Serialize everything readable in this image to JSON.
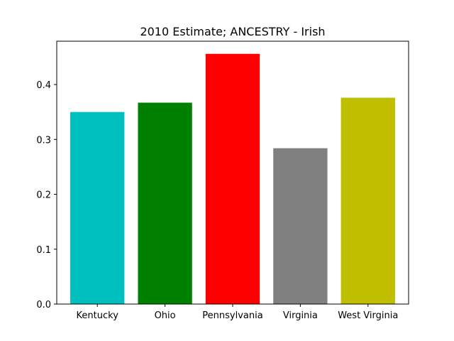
{
  "chart_data": {
    "type": "bar",
    "title": "2010 Estimate; ANCESTRY - Irish",
    "xlabel": "",
    "ylabel": "",
    "categories": [
      "Kentucky",
      "Ohio",
      "Pennsylvania",
      "Virginia",
      "West Virginia"
    ],
    "values": [
      0.35,
      0.367,
      0.456,
      0.284,
      0.376
    ],
    "colors": [
      "#00bfbf",
      "#008000",
      "#ff0000",
      "#808080",
      "#bfbf00"
    ],
    "ylim": [
      0,
      0.479
    ],
    "yticks": [
      0.0,
      0.1,
      0.2,
      0.3,
      0.4
    ],
    "ytick_labels": [
      "0.0",
      "0.1",
      "0.2",
      "0.3",
      "0.4"
    ],
    "grid": false,
    "legend": "none"
  }
}
